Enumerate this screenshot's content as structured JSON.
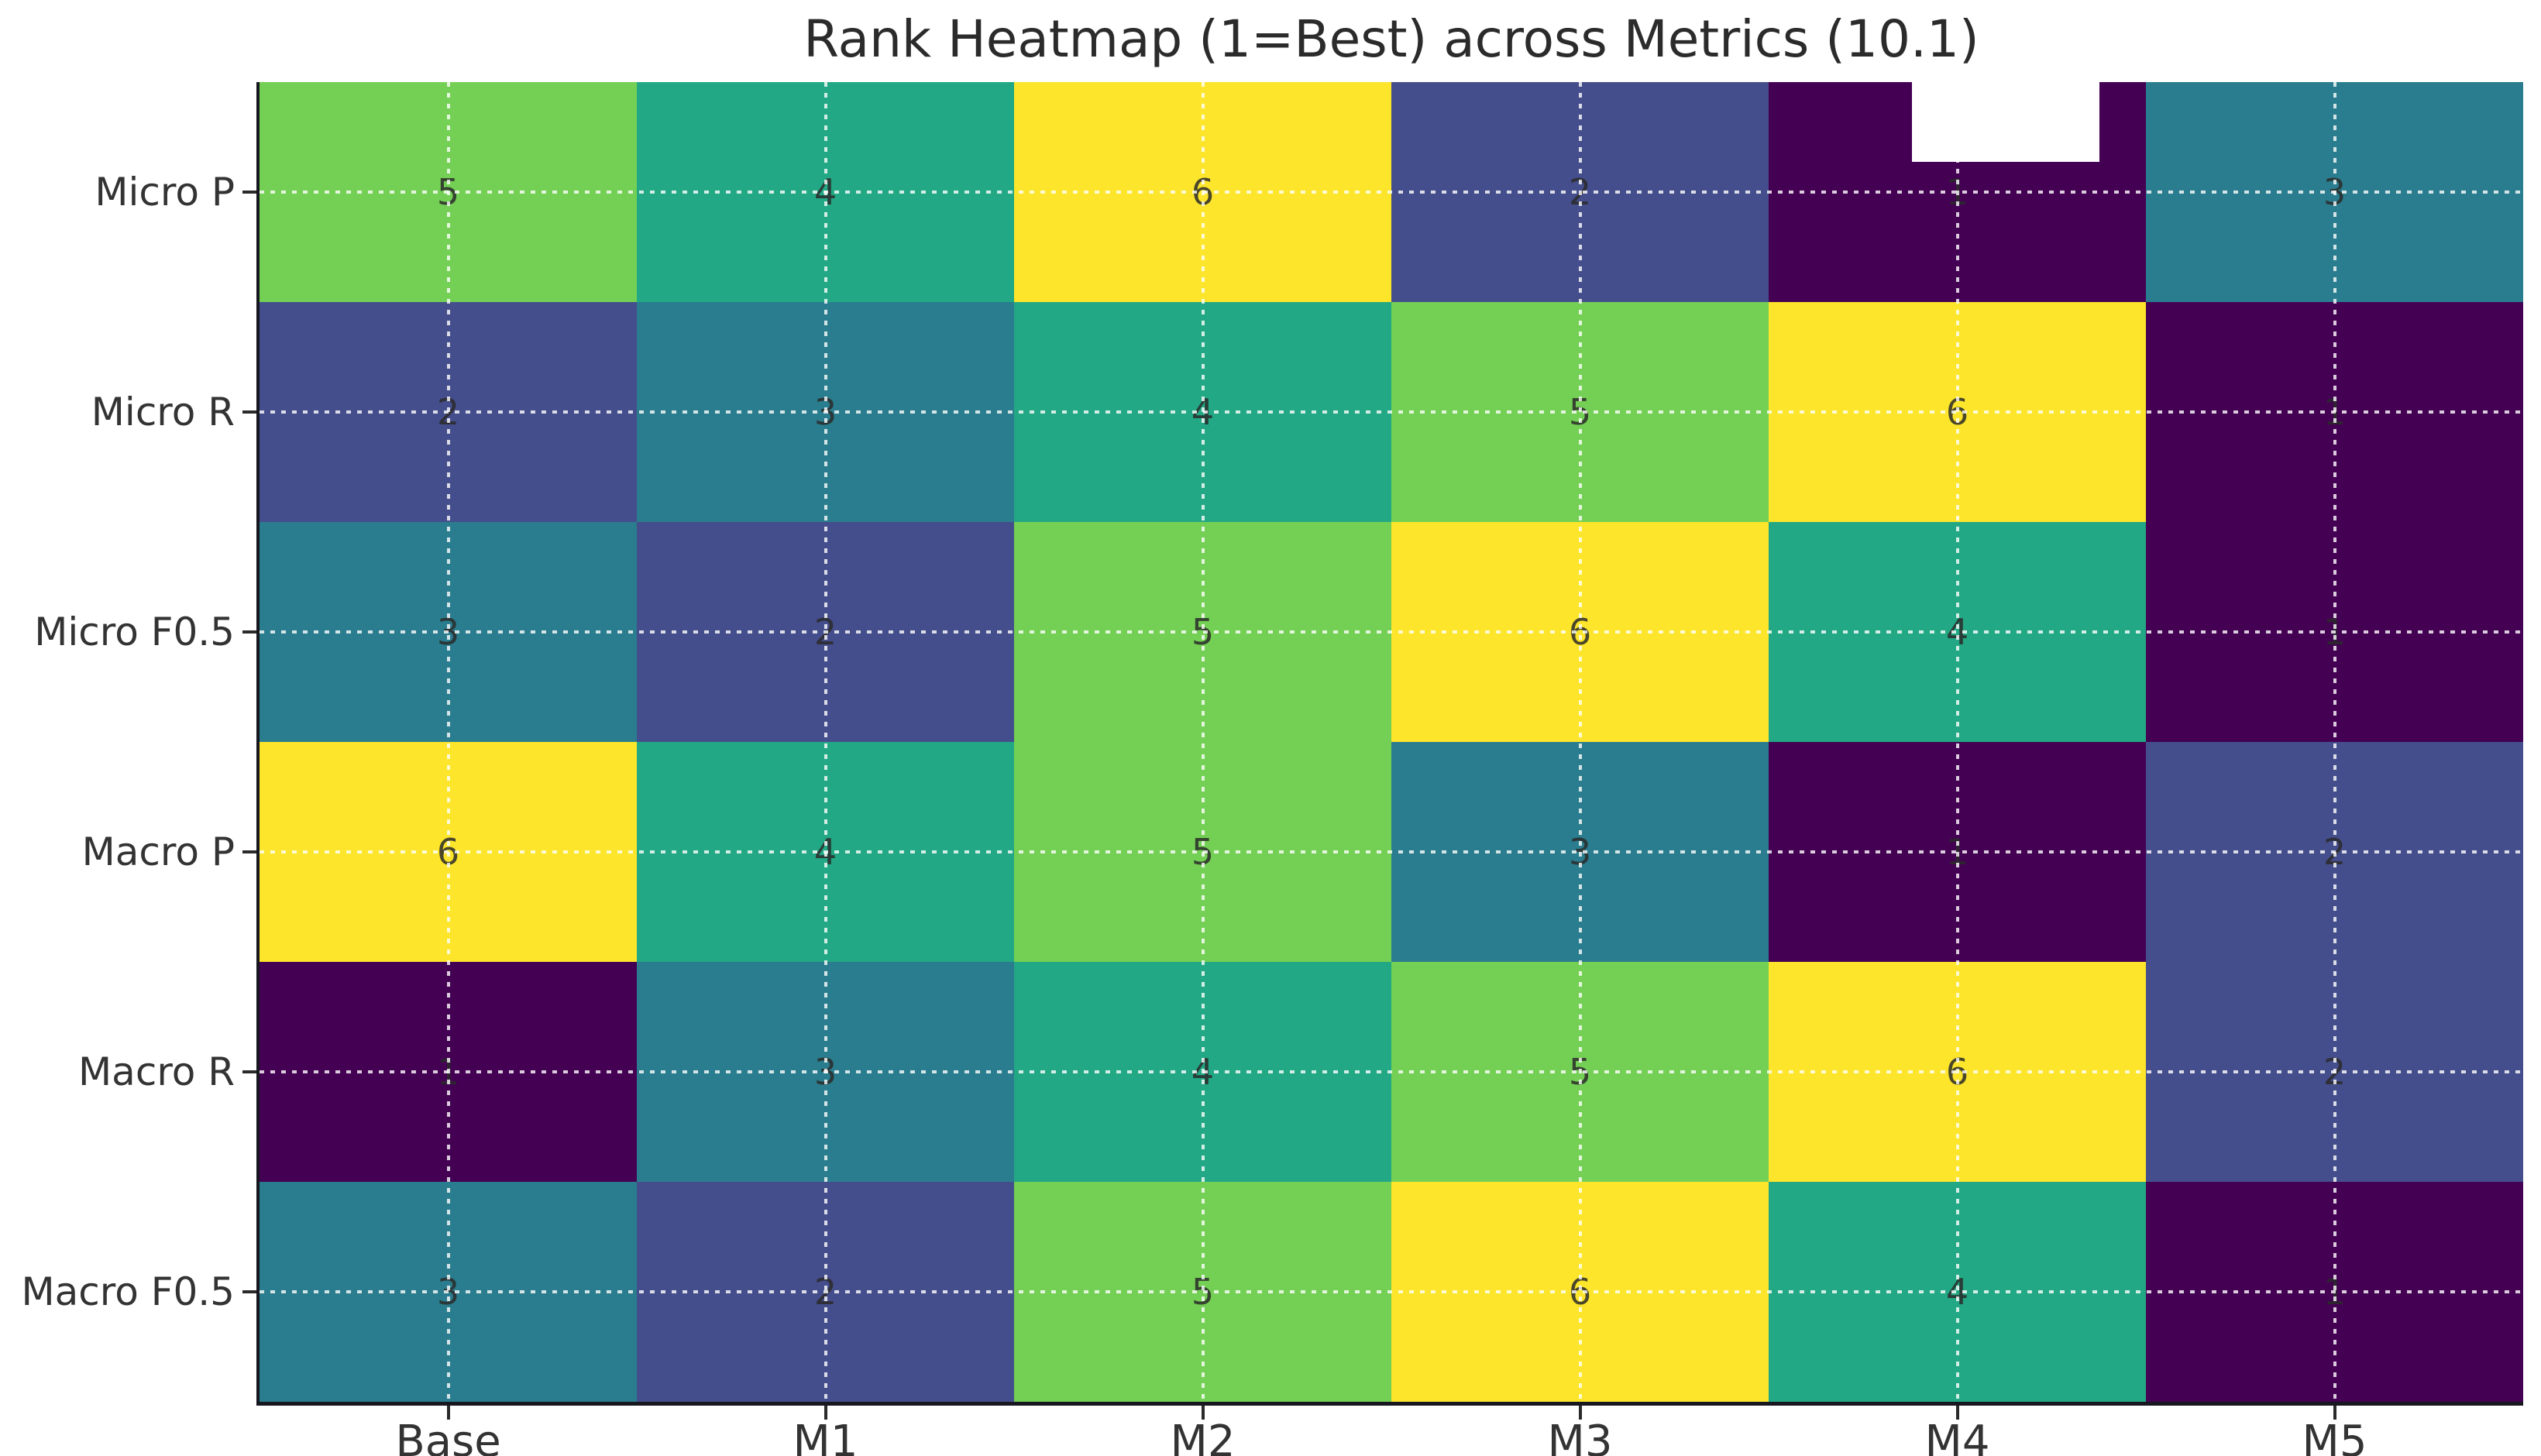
{
  "chart_data": {
    "type": "heatmap",
    "title": "Rank Heatmap (1=Best) across Metrics (10.1)",
    "rows": [
      "Micro P",
      "Micro R",
      "Micro F0.5",
      "Macro P",
      "Macro R",
      "Macro F0.5"
    ],
    "columns": [
      "Base",
      "M1",
      "M2",
      "M3",
      "M4",
      "M5"
    ],
    "values": [
      [
        5,
        4,
        6,
        2,
        1,
        3
      ],
      [
        2,
        3,
        4,
        5,
        6,
        1
      ],
      [
        3,
        2,
        5,
        6,
        4,
        1
      ],
      [
        6,
        4,
        5,
        3,
        1,
        2
      ],
      [
        1,
        3,
        4,
        5,
        6,
        2
      ],
      [
        3,
        2,
        5,
        6,
        4,
        1
      ]
    ],
    "colormap": "viridis",
    "rank_colors": {
      "1": "#440154",
      "2": "#454e8c",
      "3": "#2a7d8e",
      "4": "#22a884",
      "5": "#74d054",
      "6": "#fce52a"
    },
    "value_range": [
      1,
      6
    ],
    "grid": true,
    "grid_style": "white dashed at row/column centers",
    "legend": "none",
    "background": "#ffffff",
    "label_color": "#333333",
    "cell_label_color": "rgba(42,42,42,0.85)",
    "artifact_white_patch": {
      "row": "Micro P",
      "column": "M4",
      "note": "white rectangle obscuring top of first-row M4 cell"
    }
  }
}
